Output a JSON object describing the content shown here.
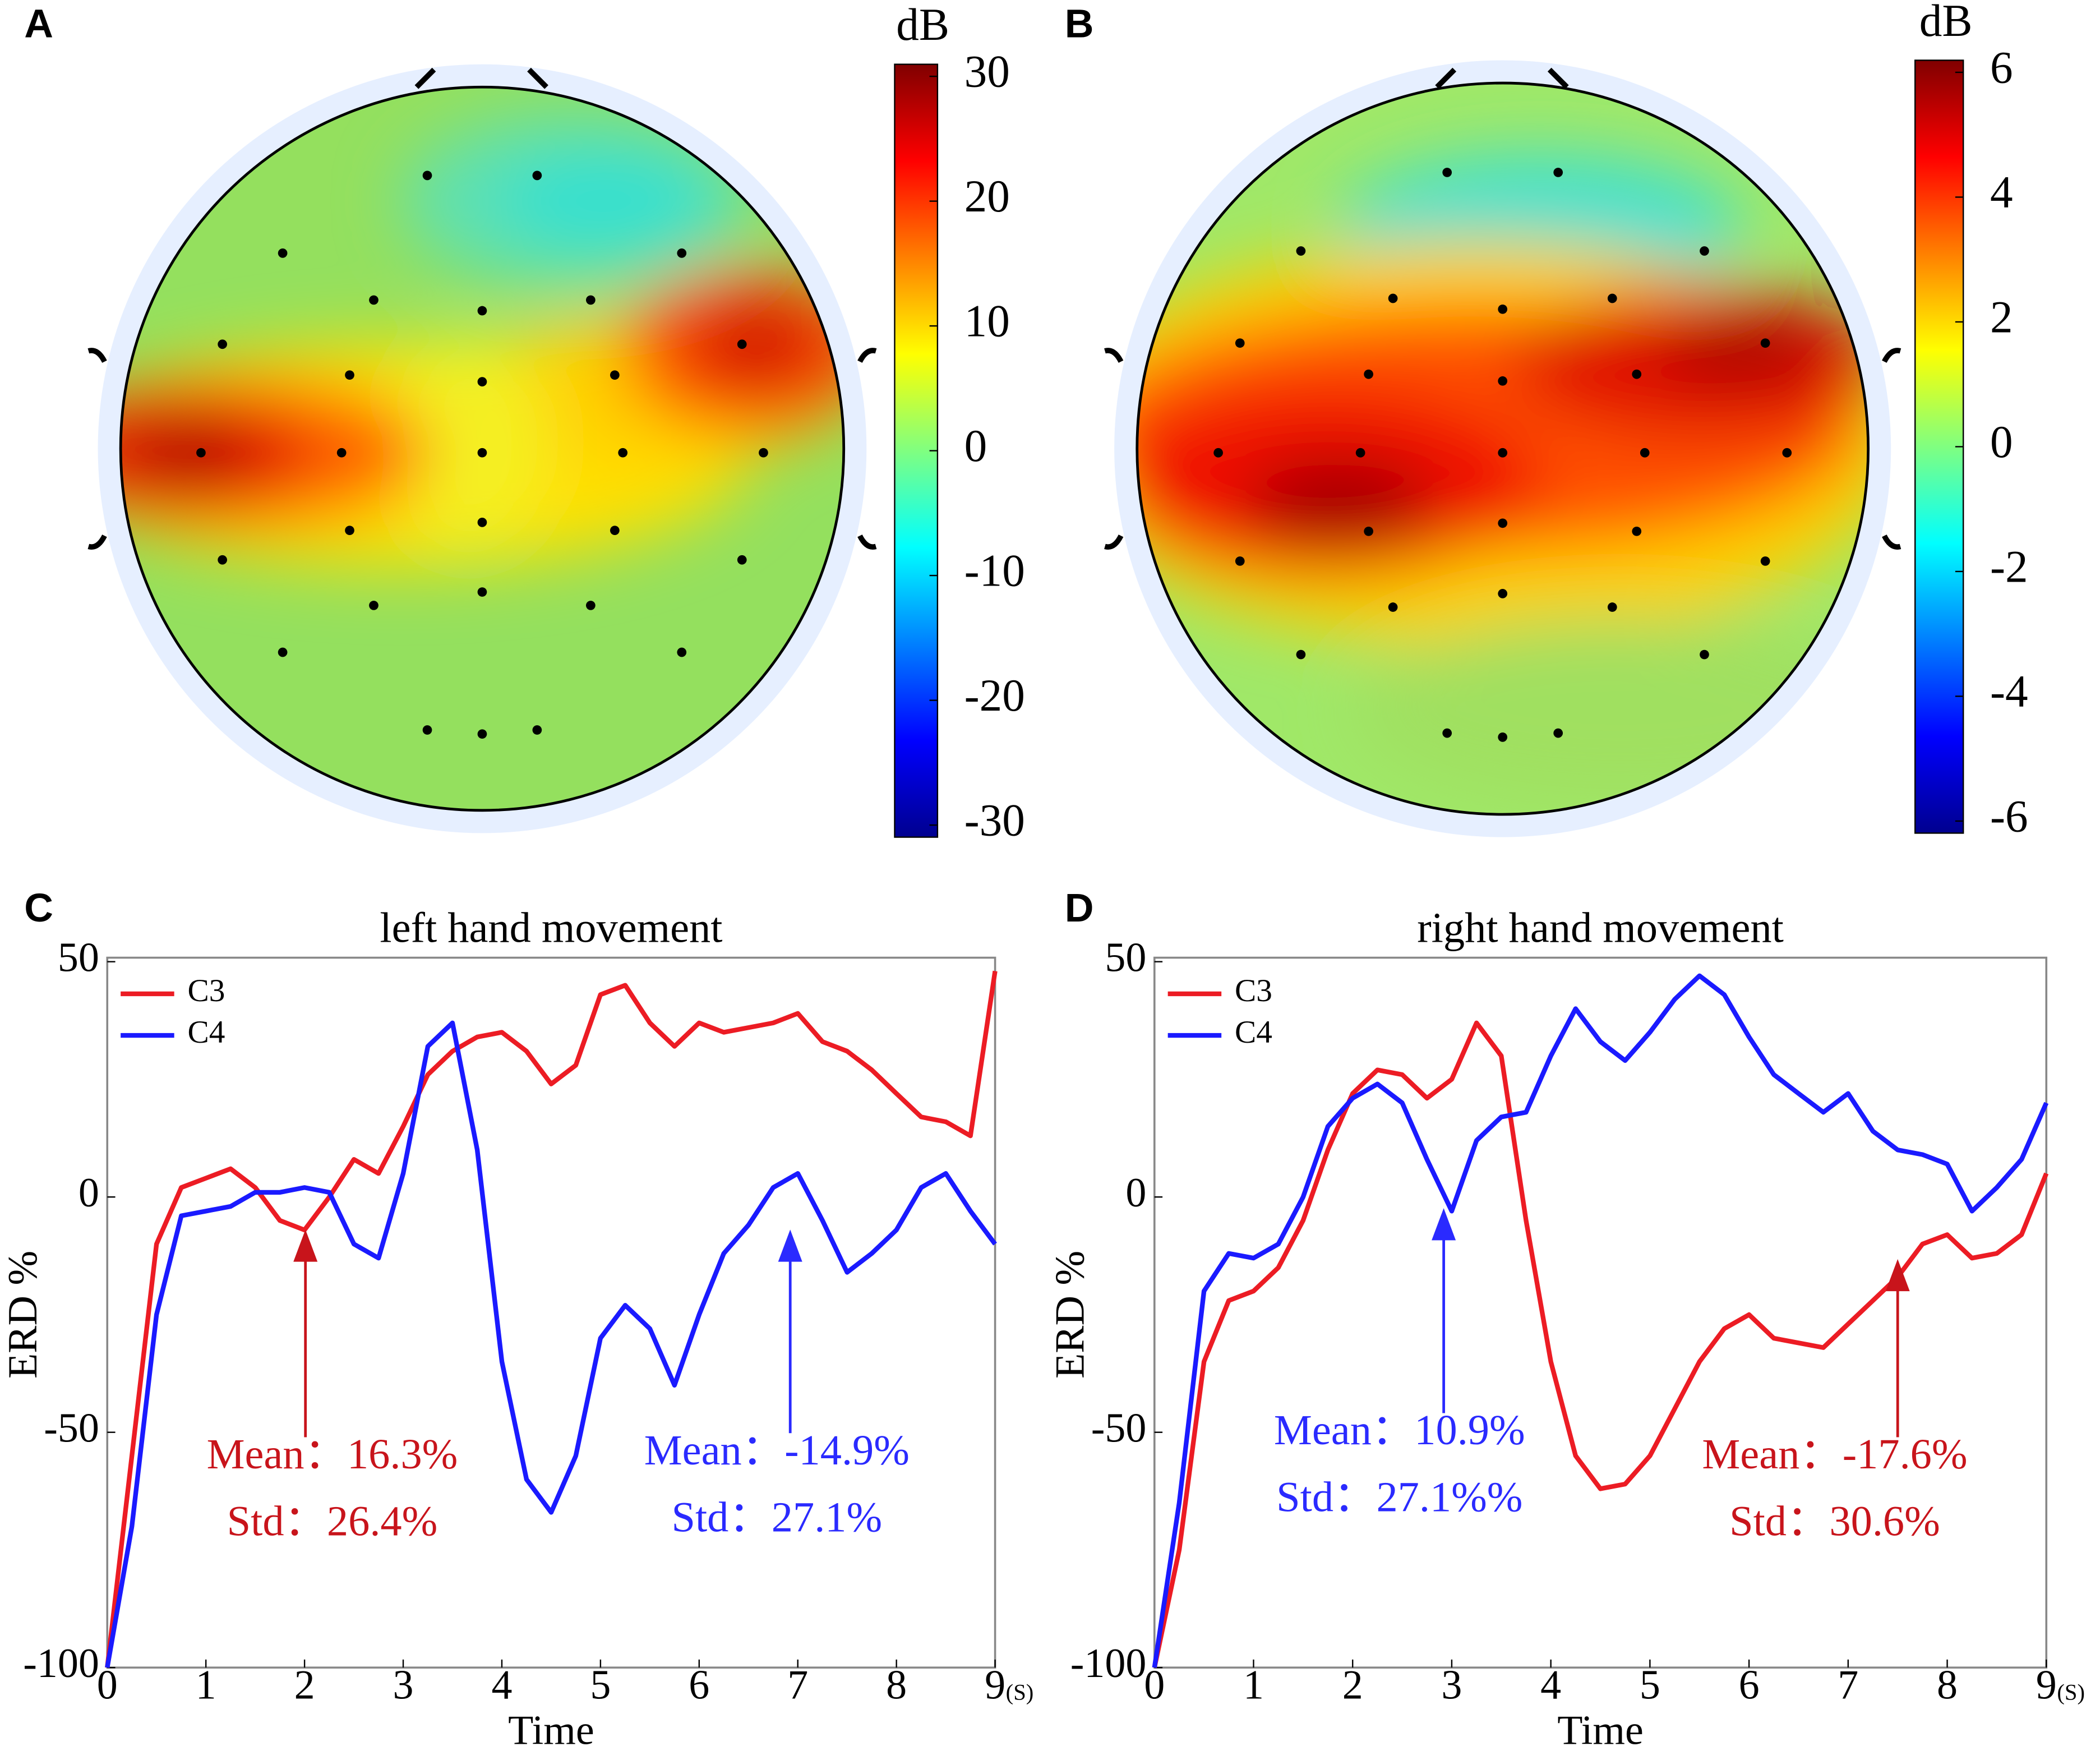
{
  "chart_data": [
    {
      "type": "topomap",
      "panel": "A",
      "colorbar_label": "dB",
      "clim": [
        -30,
        30
      ],
      "cticks": [
        30,
        20,
        10,
        0,
        -10,
        -20,
        -30
      ]
    },
    {
      "type": "topomap",
      "panel": "B",
      "colorbar_label": "dB",
      "clim": [
        -6,
        6
      ],
      "cticks": [
        6,
        4,
        2,
        0,
        -2,
        -4,
        -6
      ]
    },
    {
      "type": "line",
      "panel": "C",
      "title": "left hand movement",
      "xlabel": "Time",
      "ylabel": "ERD %",
      "x_unit": "(S)",
      "x": [
        0,
        0.25,
        0.5,
        0.75,
        1,
        1.25,
        1.5,
        1.75,
        2,
        2.25,
        2.5,
        2.75,
        3,
        3.25,
        3.5,
        3.75,
        4,
        4.25,
        4.5,
        4.75,
        5,
        5.25,
        5.5,
        5.75,
        6,
        6.25,
        6.5,
        6.75,
        7,
        7.25,
        7.5,
        7.75,
        8,
        8.25,
        8.5,
        8.75,
        9
      ],
      "xlim": [
        0,
        9
      ],
      "xticks": [
        0,
        1,
        2,
        3,
        4,
        5,
        6,
        7,
        8,
        9
      ],
      "ylim": [
        -100,
        50
      ],
      "yticks": [
        -100,
        -50,
        0,
        50
      ],
      "legend": "upper left",
      "series": [
        {
          "name": "C3",
          "color": "#ec1c24",
          "values": [
            -100,
            -55,
            -10,
            2,
            4,
            6,
            2,
            -5,
            -7,
            0,
            8,
            5,
            15,
            26,
            31,
            34,
            35,
            31,
            24,
            28,
            43,
            45,
            37,
            32,
            37,
            35,
            36,
            37,
            39,
            33,
            31,
            27,
            22,
            17,
            16,
            13,
            48
          ]
        },
        {
          "name": "C4",
          "color": "#1a1aff",
          "values": [
            -100,
            -70,
            -25,
            -4,
            -3,
            -2,
            1,
            1,
            2,
            1,
            -10,
            -13,
            5,
            32,
            37,
            10,
            -35,
            -60,
            -67,
            -55,
            -30,
            -23,
            -28,
            -40,
            -25,
            -12,
            -6,
            2,
            5,
            -5,
            -16,
            -12,
            -7,
            2,
            5,
            -3,
            -10
          ]
        }
      ],
      "annotations": [
        {
          "lines": [
            "Mean：16.3%",
            "Std：26.4%"
          ],
          "color": "#c8141b"
        },
        {
          "lines": [
            "Mean：-14.9%",
            "Std：27.1%"
          ],
          "color": "#2a2aff"
        }
      ]
    },
    {
      "type": "line",
      "panel": "D",
      "title": "right hand movement",
      "xlabel": "Time",
      "ylabel": "ERD %",
      "x_unit": "(S)",
      "x": [
        0,
        0.25,
        0.5,
        0.75,
        1,
        1.25,
        1.5,
        1.75,
        2,
        2.25,
        2.5,
        2.75,
        3,
        3.25,
        3.5,
        3.75,
        4,
        4.25,
        4.5,
        4.75,
        5,
        5.25,
        5.5,
        5.75,
        6,
        6.25,
        6.5,
        6.75,
        7,
        7.25,
        7.5,
        7.75,
        8,
        8.25,
        8.5,
        8.75,
        9
      ],
      "xlim": [
        0,
        9
      ],
      "xticks": [
        0,
        1,
        2,
        3,
        4,
        5,
        6,
        7,
        8,
        9
      ],
      "ylim": [
        -100,
        50
      ],
      "yticks": [
        -100,
        -50,
        0,
        50
      ],
      "legend": "upper left",
      "series": [
        {
          "name": "C3",
          "color": "#ec1c24",
          "values": [
            -100,
            -75,
            -35,
            -22,
            -20,
            -15,
            -5,
            10,
            22,
            27,
            26,
            21,
            25,
            37,
            30,
            -5,
            -35,
            -55,
            -62,
            -61,
            -55,
            -45,
            -35,
            -28,
            -25,
            -30,
            -31,
            -32,
            -27,
            -22,
            -17,
            -10,
            -8,
            -13,
            -12,
            -8,
            5
          ]
        },
        {
          "name": "C4",
          "color": "#1a1aff",
          "values": [
            -100,
            -65,
            -20,
            -12,
            -13,
            -10,
            0,
            15,
            21,
            24,
            20,
            8,
            -3,
            12,
            17,
            18,
            30,
            40,
            33,
            29,
            35,
            42,
            47,
            43,
            34,
            26,
            22,
            18,
            22,
            14,
            10,
            9,
            7,
            -3,
            2,
            8,
            20
          ]
        }
      ],
      "annotations": [
        {
          "lines": [
            "Mean：10.9%",
            "Std：27.1%%"
          ],
          "color": "#2a2aff"
        },
        {
          "lines": [
            "Mean：-17.6%",
            "Std：30.6%"
          ],
          "color": "#c8141b"
        }
      ]
    }
  ]
}
